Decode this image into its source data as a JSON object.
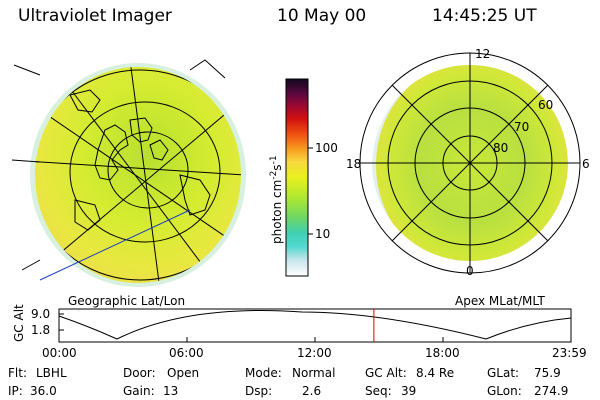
{
  "header": {
    "instrument": "Ultraviolet Imager",
    "date": "10 May 00",
    "time": "14:45:25 UT"
  },
  "left_panel": {
    "caption": "Geographic Lat/Lon"
  },
  "right_panel": {
    "caption": "Apex MLat/MLT",
    "mlt_labels": [
      "12",
      "18",
      "6",
      "0"
    ],
    "mlat_labels": [
      "60",
      "70",
      "80"
    ]
  },
  "colorbar": {
    "unit_label": "photon cm",
    "unit_sup1": "-2",
    "unit_s": "s",
    "unit_sup2": "-1",
    "tick_labels": [
      "100",
      "10"
    ],
    "colors": [
      "#ffffff",
      "#c8e6ec",
      "#80dde8",
      "#40d0c8",
      "#60d080",
      "#a0e040",
      "#d8f020",
      "#f8f020",
      "#f8c840",
      "#f89820",
      "#f06010",
      "#e02010",
      "#b80818",
      "#800838",
      "#500840",
      "#200820"
    ]
  },
  "altitude_plot": {
    "ylabel": "GC Alt",
    "y_ticks": [
      "9.0",
      "1.8"
    ],
    "x_ticks": [
      "00:00",
      "06:00",
      "12:00",
      "18:00",
      "23:59"
    ],
    "marker_color": "#dd0000",
    "marker_time_hours": 14.76
  },
  "info": {
    "row1": [
      {
        "label": "Flt:",
        "value": "LBHL"
      },
      {
        "label": "Door:",
        "value": "Open"
      },
      {
        "label": "Mode:",
        "value": "Normal"
      },
      {
        "label": "GC Alt:",
        "value": "8.4 Re"
      },
      {
        "label": "GLat:",
        "value": "75.9"
      }
    ],
    "row2": [
      {
        "label": "IP:",
        "value": "36.0"
      },
      {
        "label": "Gain:",
        "value": "13"
      },
      {
        "label": "Dsp:",
        "value": "2.6"
      },
      {
        "label": "Seq:",
        "value": "39"
      },
      {
        "label": "GLon:",
        "value": "274.9"
      }
    ]
  }
}
